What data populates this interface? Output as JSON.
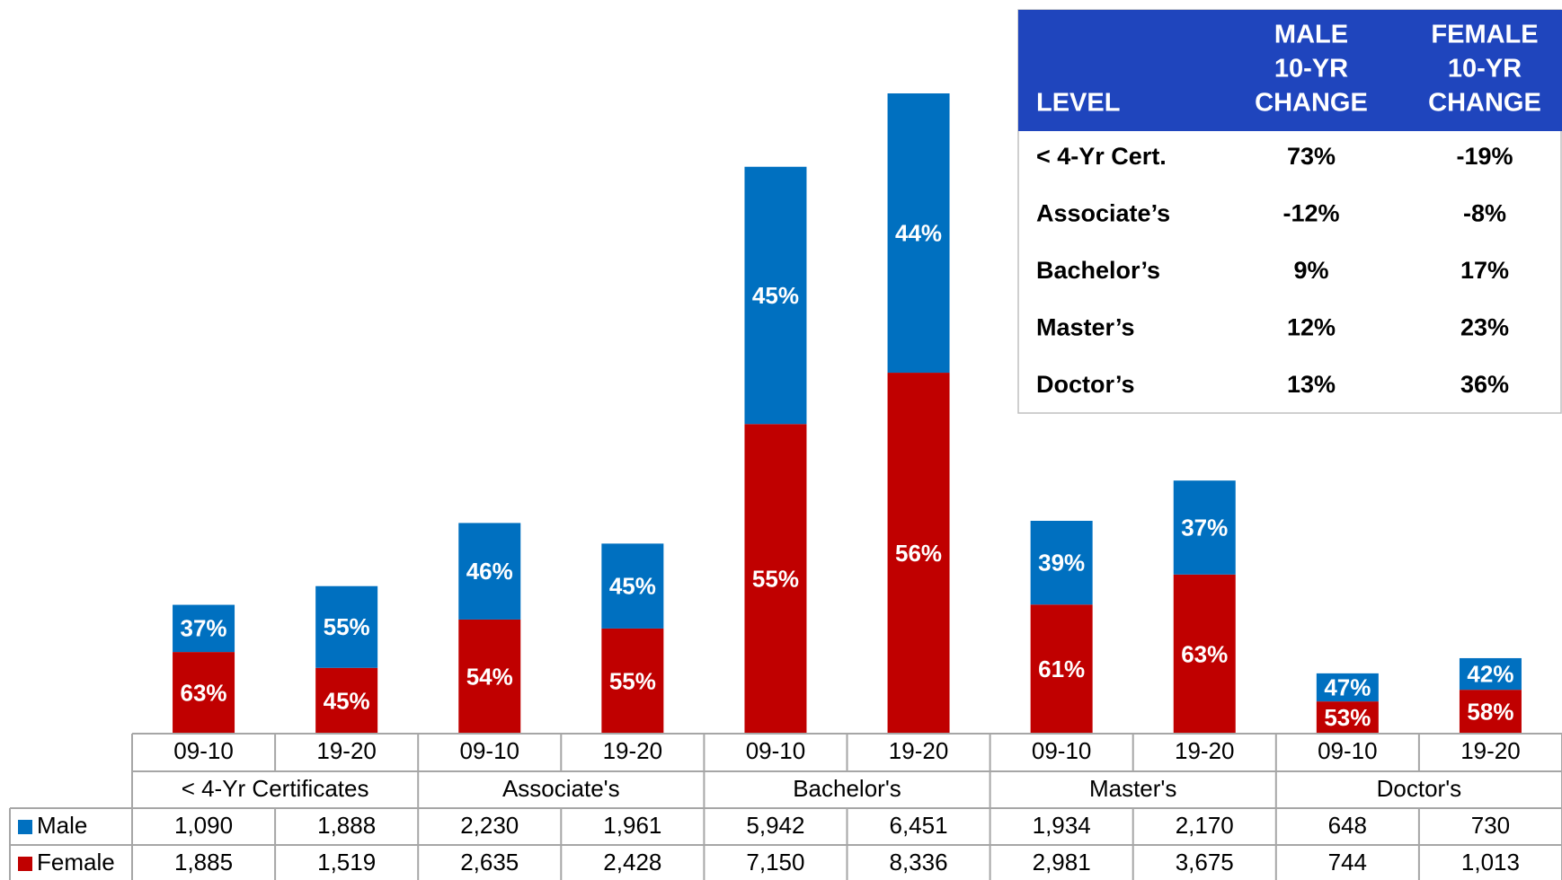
{
  "chart_data": {
    "type": "bar",
    "stacked": true,
    "groups": [
      "< 4-Yr Certificates",
      "Associate's",
      "Bachelor's",
      "Master's",
      "Doctor's"
    ],
    "categories": [
      "09-10",
      "19-20",
      "09-10",
      "19-20",
      "09-10",
      "19-20",
      "09-10",
      "19-20",
      "09-10",
      "19-20"
    ],
    "series": [
      {
        "name": "Male",
        "color": "#0070c0",
        "values": [
          1090,
          1888,
          2230,
          1961,
          5942,
          6451,
          1934,
          2170,
          648,
          730
        ],
        "value_labels": [
          "1,090",
          "1,888",
          "2,230",
          "1,961",
          "5,942",
          "6,451",
          "1,934",
          "2,170",
          "648",
          "730"
        ],
        "share_labels": [
          "37%",
          "55%",
          "46%",
          "45%",
          "45%",
          "44%",
          "39%",
          "37%",
          "47%",
          "42%"
        ]
      },
      {
        "name": "Female",
        "color": "#c00000",
        "values": [
          1885,
          1519,
          2635,
          2428,
          7150,
          8336,
          2981,
          3675,
          744,
          1013
        ],
        "value_labels": [
          "1,885",
          "1,519",
          "2,635",
          "2,428",
          "7,150",
          "8,336",
          "2,981",
          "3,675",
          "744",
          "1,013"
        ],
        "share_labels": [
          "63%",
          "45%",
          "54%",
          "55%",
          "55%",
          "56%",
          "61%",
          "63%",
          "53%",
          "58%"
        ]
      }
    ]
  },
  "table": {
    "columns": [
      [
        "LEVEL"
      ],
      [
        "MALE",
        "10-YR",
        "CHANGE"
      ],
      [
        "FEMALE",
        "10-YR",
        "CHANGE"
      ]
    ],
    "rows": [
      [
        "< 4-Yr Cert.",
        "73%",
        "-19%"
      ],
      [
        "Associate’s",
        "-12%",
        "-8%"
      ],
      [
        "Bachelor’s",
        "9%",
        "17%"
      ],
      [
        "Master’s",
        "12%",
        "23%"
      ],
      [
        "Doctor’s",
        "13%",
        "36%"
      ]
    ]
  }
}
